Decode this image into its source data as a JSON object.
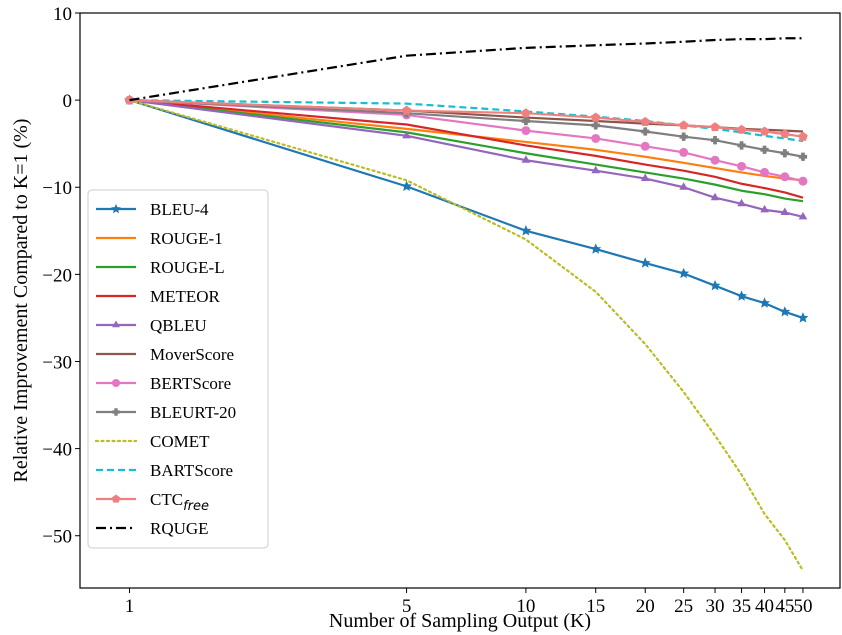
{
  "chart_data": {
    "type": "line",
    "xlabel": "Number of Sampling Output (K)",
    "ylabel": "Relative Improvement Compared to K=1 (%)",
    "x_scale": "log",
    "xlim": [
      0.75,
      62
    ],
    "ylim": [
      -56,
      10
    ],
    "xticks": [
      1,
      5,
      10,
      15,
      20,
      25,
      30,
      35,
      40,
      45,
      50
    ],
    "xtick_labels": [
      "1",
      "5",
      "10",
      "15",
      "20",
      "25",
      "30",
      "35",
      "40",
      "45",
      "50"
    ],
    "yticks": [
      10,
      0,
      -10,
      -20,
      -30,
      -40,
      -50
    ],
    "ytick_labels": [
      "10",
      "0",
      "−10",
      "−20",
      "−30",
      "−40",
      "−50"
    ],
    "grid": false,
    "legend_position": "lower-left",
    "x": [
      1,
      5,
      10,
      15,
      20,
      25,
      30,
      35,
      40,
      45,
      50
    ],
    "series": [
      {
        "name": "BLEU-4",
        "color": "#1f77b4",
        "dash": "solid",
        "marker": "star",
        "values": [
          0,
          -9.9,
          -15.0,
          -17.1,
          -18.7,
          -19.9,
          -21.3,
          -22.5,
          -23.3,
          -24.3,
          -25.0
        ]
      },
      {
        "name": "ROUGE-1",
        "color": "#ff7f0e",
        "dash": "solid",
        "marker": "none",
        "values": [
          0,
          -3.3,
          -4.8,
          -5.7,
          -6.5,
          -7.2,
          -7.8,
          -8.3,
          -8.7,
          -9.0,
          -9.2
        ]
      },
      {
        "name": "ROUGE-L",
        "color": "#2ca02c",
        "dash": "solid",
        "marker": "none",
        "values": [
          0,
          -3.7,
          -6.1,
          -7.4,
          -8.3,
          -9.0,
          -9.7,
          -10.4,
          -10.8,
          -11.3,
          -11.6
        ]
      },
      {
        "name": "METEOR",
        "color": "#d62728",
        "dash": "solid",
        "marker": "none",
        "values": [
          0,
          -2.8,
          -5.2,
          -6.4,
          -7.4,
          -8.1,
          -8.8,
          -9.6,
          -10.1,
          -10.6,
          -11.2
        ]
      },
      {
        "name": "QBLEU",
        "color": "#9467bd",
        "dash": "solid",
        "marker": "triangle",
        "values": [
          0,
          -4.1,
          -6.9,
          -8.1,
          -9.0,
          -10.0,
          -11.2,
          -11.9,
          -12.6,
          -12.9,
          -13.4
        ]
      },
      {
        "name": "MoverScore",
        "color": "#8c564b",
        "dash": "solid",
        "marker": "none",
        "values": [
          0,
          -1.2,
          -2.0,
          -2.4,
          -2.7,
          -2.9,
          -3.1,
          -3.3,
          -3.4,
          -3.5,
          -3.6
        ]
      },
      {
        "name": "BERTScore",
        "color": "#e377c2",
        "dash": "solid",
        "marker": "circle",
        "values": [
          0,
          -1.7,
          -3.5,
          -4.4,
          -5.3,
          -6.0,
          -6.9,
          -7.6,
          -8.3,
          -8.8,
          -9.3
        ]
      },
      {
        "name": "BLEURT-20",
        "color": "#7f7f7f",
        "dash": "solid",
        "marker": "x",
        "values": [
          0,
          -1.5,
          -2.4,
          -2.9,
          -3.6,
          -4.2,
          -4.6,
          -5.2,
          -5.7,
          -6.1,
          -6.5
        ]
      },
      {
        "name": "COMET",
        "color": "#bcbd22",
        "dash": "dotted",
        "marker": "none",
        "values": [
          0,
          -9.2,
          -16.0,
          -22.0,
          -28.0,
          -33.5,
          -38.5,
          -43.0,
          -47.5,
          -50.5,
          -54.0
        ]
      },
      {
        "name": "BARTScore",
        "color": "#17becf",
        "dash": "dashed",
        "marker": "none",
        "values": [
          0,
          -0.4,
          -1.3,
          -1.9,
          -2.4,
          -2.9,
          -3.3,
          -3.7,
          -4.1,
          -4.4,
          -4.7
        ]
      },
      {
        "name": "CTC",
        "subscript": "free",
        "color": "#f08080",
        "dash": "solid",
        "marker": "pentagon",
        "values": [
          0,
          -1.2,
          -1.5,
          -2.0,
          -2.5,
          -2.9,
          -3.1,
          -3.4,
          -3.6,
          -3.9,
          -4.2
        ]
      },
      {
        "name": "RQUGE",
        "color": "#000000",
        "dash": "dashdot",
        "marker": "none",
        "values": [
          0,
          5.1,
          6.0,
          6.3,
          6.5,
          6.7,
          6.9,
          7.0,
          7.0,
          7.1,
          7.1
        ]
      }
    ]
  }
}
